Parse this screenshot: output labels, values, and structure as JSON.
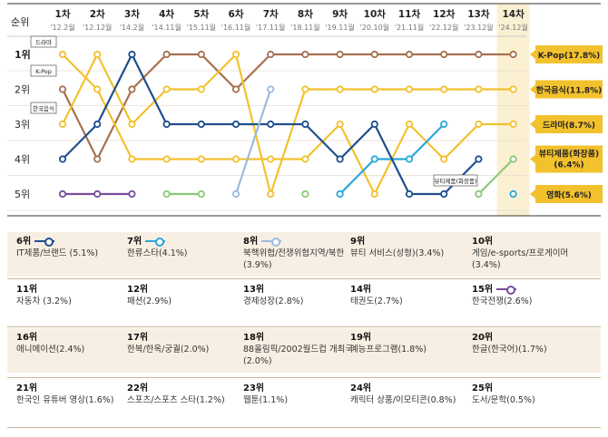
{
  "chart_data": {
    "type": "line",
    "y_axis_label": "순위",
    "y_ticks": [
      "1위",
      "2위",
      "3위",
      "4위",
      "5위"
    ],
    "ylim": [
      1,
      5
    ],
    "y_inverted": true,
    "categories": [
      {
        "label": "1차",
        "sub": "'12.2월"
      },
      {
        "label": "2차",
        "sub": "'12.12월"
      },
      {
        "label": "3차",
        "sub": "'14.2월"
      },
      {
        "label": "4차",
        "sub": "'14.11월"
      },
      {
        "label": "5차",
        "sub": "'15.11월"
      },
      {
        "label": "6차",
        "sub": "'16.11월"
      },
      {
        "label": "7차",
        "sub": "'17.11월"
      },
      {
        "label": "8차",
        "sub": "'18.11월"
      },
      {
        "label": "9차",
        "sub": "'19.11월"
      },
      {
        "label": "10차",
        "sub": "'20.10월"
      },
      {
        "label": "11차",
        "sub": "'21.11월"
      },
      {
        "label": "12차",
        "sub": "'22.12월"
      },
      {
        "label": "13차",
        "sub": "'23.12월"
      },
      {
        "label": "14차",
        "sub": "'24.12월"
      }
    ],
    "series": [
      {
        "name": "K-Pop",
        "end_label": "K-Pop(17.8%)",
        "color": "#a7704f",
        "values": [
          2,
          4,
          2,
          1,
          1,
          2,
          1,
          1,
          1,
          1,
          1,
          1,
          1,
          1
        ],
        "tag": "K-Pop"
      },
      {
        "name": "한국음식",
        "end_label": "한국음식(11.8%)",
        "color": "#f2c12e",
        "values": [
          3,
          1,
          3,
          2,
          2,
          1,
          5,
          2,
          2,
          2,
          2,
          2,
          2,
          2
        ],
        "tag": "한국음식"
      },
      {
        "name": "드라마",
        "end_label": "드라마(8.7%)",
        "color": "#f2c12e",
        "values": [
          1,
          2,
          4,
          4,
          4,
          4,
          4,
          4,
          3,
          5,
          3,
          4,
          3,
          3
        ],
        "tag": "드라마"
      },
      {
        "name": "뷰티제품(화장품)",
        "end_label": "뷰티제품(화장품)(6.4%)",
        "color": "#8bc97a",
        "values": [
          null,
          null,
          null,
          null,
          null,
          null,
          null,
          null,
          null,
          null,
          null,
          null,
          5,
          4
        ],
        "tag": "뷰티제품(화장품)"
      },
      {
        "name": "영화",
        "end_label": "영화(5.6%)",
        "color": "#2aa7d8",
        "values": [
          null,
          null,
          null,
          null,
          null,
          null,
          null,
          null,
          5,
          4,
          4,
          3,
          null,
          5
        ]
      },
      {
        "name": "IT제품/브랜드",
        "color": "#1f4e8c",
        "values": [
          4,
          3,
          1,
          3,
          3,
          3,
          3,
          3,
          4,
          3,
          5,
          5,
          4,
          null
        ]
      },
      {
        "name": "북핵위협/전쟁위협지역/북한",
        "color": "#9bbbe0",
        "values": [
          null,
          null,
          null,
          null,
          null,
          5,
          2,
          null,
          null,
          null,
          null,
          null,
          null,
          null
        ]
      },
      {
        "name": "한국전쟁",
        "color": "#7a4c9c",
        "values": [
          5,
          5,
          5,
          null,
          null,
          null,
          null,
          null,
          null,
          null,
          null,
          null,
          null,
          null
        ]
      },
      {
        "name": "태권도",
        "color": "#8bc97a",
        "values": [
          null,
          null,
          null,
          5,
          5,
          null,
          null,
          5,
          null,
          null,
          null,
          null,
          null,
          null
        ]
      }
    ],
    "ranking": [
      {
        "rank": "6위",
        "label": "IT제품/브랜드 (5.1%)",
        "legend_color": "#1f4e8c"
      },
      {
        "rank": "7위",
        "label": "한류스타(4.1%)",
        "legend_color": "#2aa7d8"
      },
      {
        "rank": "8위",
        "label": "북핵위협/전쟁위협지역/북한(3.9%)",
        "legend_color": "#9bbbe0"
      },
      {
        "rank": "9위",
        "label": "뷰티 서비스(성형)(3.4%)"
      },
      {
        "rank": "10위",
        "label": "게임/e-sports/프로게이머(3.4%)"
      },
      {
        "rank": "11위",
        "label": "자동차 (3.2%)"
      },
      {
        "rank": "12위",
        "label": "패션(2.9%)"
      },
      {
        "rank": "13위",
        "label": "경제성장(2.8%)"
      },
      {
        "rank": "14위",
        "label": "태권도(2.7%)"
      },
      {
        "rank": "15위",
        "label": "한국전쟁(2.6%)",
        "legend_color": "#7a4c9c"
      },
      {
        "rank": "16위",
        "label": "애니메이션(2.4%)"
      },
      {
        "rank": "17위",
        "label": "한복/한옥/궁궐(2.0%)"
      },
      {
        "rank": "18위",
        "label": "88올림픽/2002월드컵 개최국(2.0%)"
      },
      {
        "rank": "19위",
        "label": "예능프로그램(1.8%)"
      },
      {
        "rank": "20위",
        "label": "한글(한국어)(1.7%)"
      },
      {
        "rank": "21위",
        "label": "한국인 유튜버 영상(1.6%)"
      },
      {
        "rank": "22위",
        "label": "스포츠/스포츠 스타(1.2%)"
      },
      {
        "rank": "23위",
        "label": "웹툰(1.1%)"
      },
      {
        "rank": "24위",
        "label": "캐릭터 상품/이모티콘(0.8%)"
      },
      {
        "rank": "25위",
        "label": "도서/문학(0.5%)"
      }
    ],
    "colors": {
      "accent_label_bg": "#f2c12e",
      "highlight_col": "#fbf0d2",
      "shade": "#f7efe3",
      "rule": "#c9b79a"
    }
  }
}
